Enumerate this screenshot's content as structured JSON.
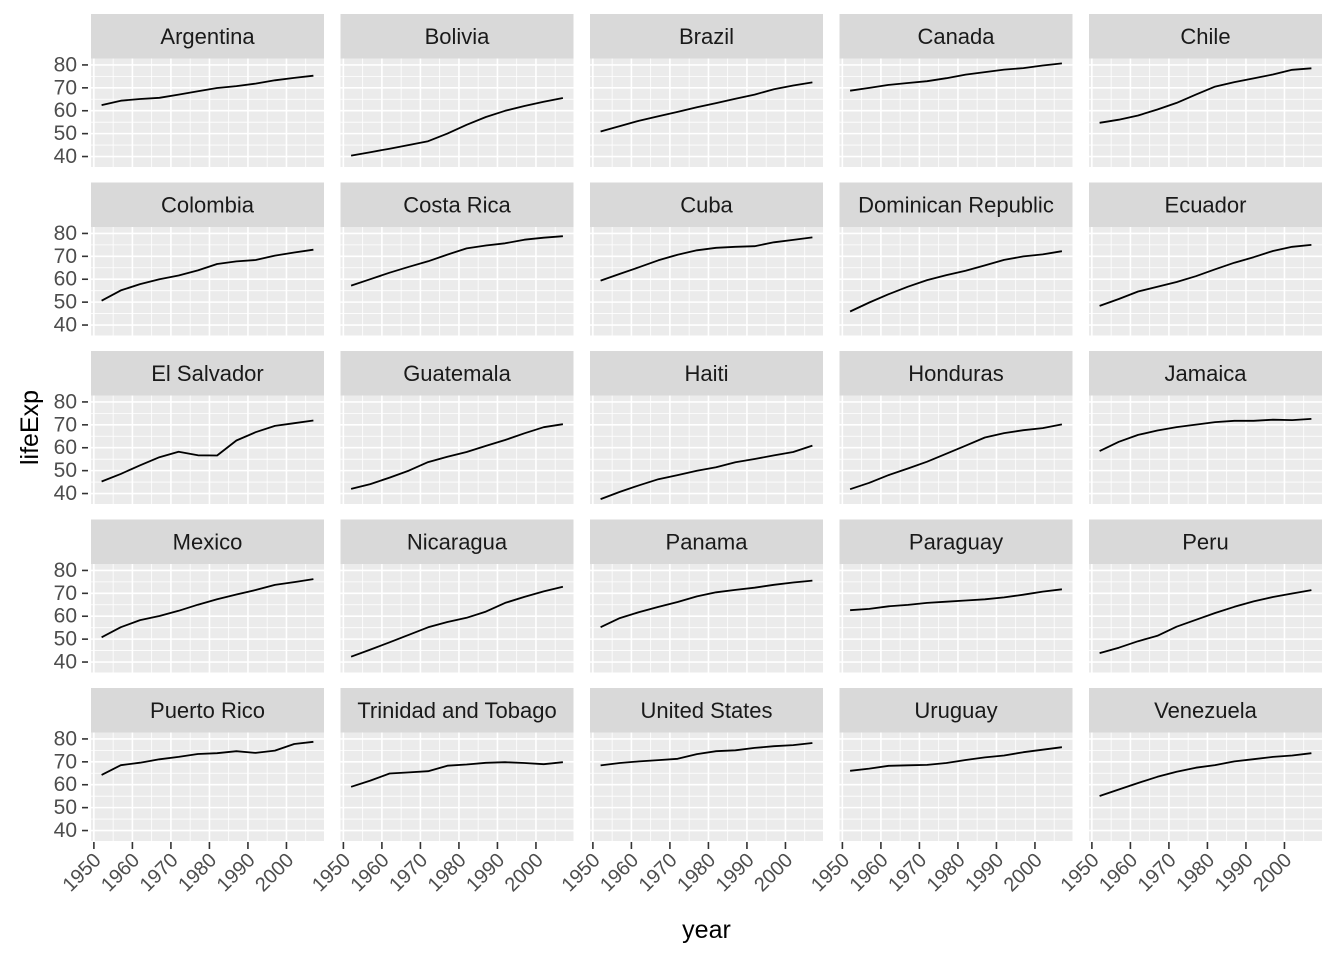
{
  "chart_data": {
    "type": "line",
    "title": "",
    "xlabel": "year",
    "ylabel": "lifeExp",
    "legend": "none",
    "grid": "white major and minor gridlines on grey panels",
    "facet_layout": {
      "rows": 5,
      "cols": 5,
      "strip_position": "top"
    },
    "x": [
      1952,
      1957,
      1962,
      1967,
      1972,
      1977,
      1982,
      1987,
      1992,
      1997,
      2002,
      2007
    ],
    "x_ticks": [
      1950,
      1960,
      1970,
      1980,
      1990,
      2000
    ],
    "x_minor": [
      1955,
      1965,
      1975,
      1985,
      1995,
      2005
    ],
    "y_ticks": [
      40,
      50,
      60,
      70,
      80
    ],
    "y_minor": [
      45,
      55,
      65,
      75
    ],
    "xlim": [
      1949.25,
      2009.75
    ],
    "ylim": [
      35.43,
      82.81
    ],
    "x_tick_angle": 45,
    "colors": {
      "background": "#FFFFFF",
      "panel_bg": "#EBEBEB",
      "strip_bg": "#D9D9D9",
      "grid": "#FFFFFF",
      "line": "#000000",
      "axis_text": "#4D4D4D",
      "strip_text": "#1A1A1A",
      "axis_title": "#000000",
      "tick_mark": "#333333"
    },
    "facets": [
      {
        "country": "Argentina",
        "lifeExp": [
          62.48,
          64.4,
          65.14,
          65.63,
          67.06,
          68.48,
          69.94,
          70.77,
          71.87,
          73.28,
          74.34,
          75.32
        ]
      },
      {
        "country": "Bolivia",
        "lifeExp": [
          40.41,
          41.89,
          43.43,
          45.03,
          46.71,
          50.02,
          53.86,
          57.25,
          59.96,
          62.05,
          63.88,
          65.55
        ]
      },
      {
        "country": "Brazil",
        "lifeExp": [
          50.92,
          53.28,
          55.67,
          57.63,
          59.5,
          61.49,
          63.34,
          65.21,
          67.06,
          69.39,
          71.01,
          72.39
        ]
      },
      {
        "country": "Canada",
        "lifeExp": [
          68.75,
          69.96,
          71.3,
          72.13,
          72.88,
          74.21,
          75.76,
          76.86,
          77.95,
          78.61,
          79.77,
          80.65
        ]
      },
      {
        "country": "Chile",
        "lifeExp": [
          54.74,
          56.07,
          57.92,
          60.52,
          63.44,
          67.05,
          70.56,
          72.49,
          74.13,
          75.82,
          77.86,
          78.55
        ]
      },
      {
        "country": "Colombia",
        "lifeExp": [
          50.64,
          55.12,
          57.86,
          59.96,
          61.62,
          63.84,
          66.65,
          67.77,
          68.42,
          70.31,
          71.68,
          72.89
        ]
      },
      {
        "country": "Costa Rica",
        "lifeExp": [
          57.21,
          60.03,
          62.84,
          65.42,
          67.85,
          70.75,
          73.45,
          74.75,
          75.71,
          77.26,
          78.12,
          78.78
        ]
      },
      {
        "country": "Cuba",
        "lifeExp": [
          59.42,
          62.33,
          65.25,
          68.29,
          70.72,
          72.65,
          73.72,
          74.17,
          74.41,
          76.15,
          77.16,
          78.27
        ]
      },
      {
        "country": "Dominican Republic",
        "lifeExp": [
          45.93,
          49.83,
          53.46,
          56.75,
          59.63,
          61.79,
          63.73,
          66.05,
          68.46,
          69.96,
          70.85,
          72.24
        ]
      },
      {
        "country": "Ecuador",
        "lifeExp": [
          48.36,
          51.36,
          54.64,
          56.68,
          58.8,
          61.31,
          64.34,
          67.23,
          69.61,
          72.31,
          74.17,
          74.99
        ]
      },
      {
        "country": "El Salvador",
        "lifeExp": [
          45.26,
          48.57,
          52.31,
          55.86,
          58.21,
          56.7,
          56.6,
          63.15,
          66.8,
          69.54,
          70.73,
          71.88
        ]
      },
      {
        "country": "Guatemala",
        "lifeExp": [
          42.02,
          44.14,
          46.95,
          50.02,
          53.74,
          56.03,
          58.14,
          60.78,
          63.37,
          66.32,
          68.98,
          70.26
        ]
      },
      {
        "country": "Haiti",
        "lifeExp": [
          37.58,
          40.7,
          43.59,
          46.24,
          48.04,
          49.92,
          51.46,
          53.64,
          55.09,
          56.67,
          58.14,
          60.92
        ]
      },
      {
        "country": "Honduras",
        "lifeExp": [
          41.91,
          44.67,
          48.04,
          50.92,
          53.88,
          57.4,
          60.91,
          64.49,
          66.4,
          67.66,
          68.57,
          70.2
        ]
      },
      {
        "country": "Jamaica",
        "lifeExp": [
          58.53,
          62.61,
          65.61,
          67.51,
          69.0,
          70.11,
          71.21,
          71.77,
          71.77,
          72.26,
          72.05,
          72.57
        ]
      },
      {
        "country": "Mexico",
        "lifeExp": [
          50.79,
          55.19,
          58.3,
          60.11,
          62.36,
          65.03,
          67.41,
          69.5,
          71.46,
          73.67,
          74.9,
          76.2
        ]
      },
      {
        "country": "Nicaragua",
        "lifeExp": [
          42.31,
          45.43,
          48.63,
          51.88,
          55.15,
          57.47,
          59.3,
          62.01,
          65.84,
          68.43,
          70.84,
          72.9
        ]
      },
      {
        "country": "Panama",
        "lifeExp": [
          55.19,
          59.2,
          61.82,
          64.07,
          66.22,
          68.68,
          70.47,
          71.52,
          72.46,
          73.74,
          74.71,
          75.54
        ]
      },
      {
        "country": "Paraguay",
        "lifeExp": [
          62.65,
          63.2,
          64.36,
          64.95,
          65.82,
          66.35,
          66.87,
          67.38,
          68.23,
          69.4,
          70.76,
          71.75
        ]
      },
      {
        "country": "Peru",
        "lifeExp": [
          43.9,
          46.26,
          49.1,
          51.45,
          55.45,
          58.45,
          61.41,
          64.13,
          66.46,
          68.39,
          69.91,
          71.42
        ]
      },
      {
        "country": "Puerto Rico",
        "lifeExp": [
          64.28,
          68.54,
          69.62,
          71.1,
          72.16,
          73.44,
          73.75,
          74.63,
          73.91,
          74.92,
          77.78,
          78.75
        ]
      },
      {
        "country": "Trinidad and Tobago",
        "lifeExp": [
          59.1,
          61.8,
          64.9,
          65.4,
          65.9,
          68.3,
          68.83,
          69.58,
          69.86,
          69.47,
          68.98,
          69.82
        ]
      },
      {
        "country": "United States",
        "lifeExp": [
          68.44,
          69.49,
          70.21,
          70.76,
          71.34,
          73.38,
          74.65,
          75.02,
          76.09,
          76.81,
          77.31,
          78.24
        ]
      },
      {
        "country": "Uruguay",
        "lifeExp": [
          66.07,
          67.04,
          68.25,
          68.47,
          68.67,
          69.48,
          70.81,
          71.92,
          72.75,
          74.22,
          75.31,
          76.38
        ]
      },
      {
        "country": "Venezuela",
        "lifeExp": [
          55.09,
          57.91,
          60.77,
          63.48,
          65.71,
          67.46,
          68.56,
          70.19,
          71.15,
          72.15,
          72.77,
          73.75
        ]
      }
    ]
  }
}
